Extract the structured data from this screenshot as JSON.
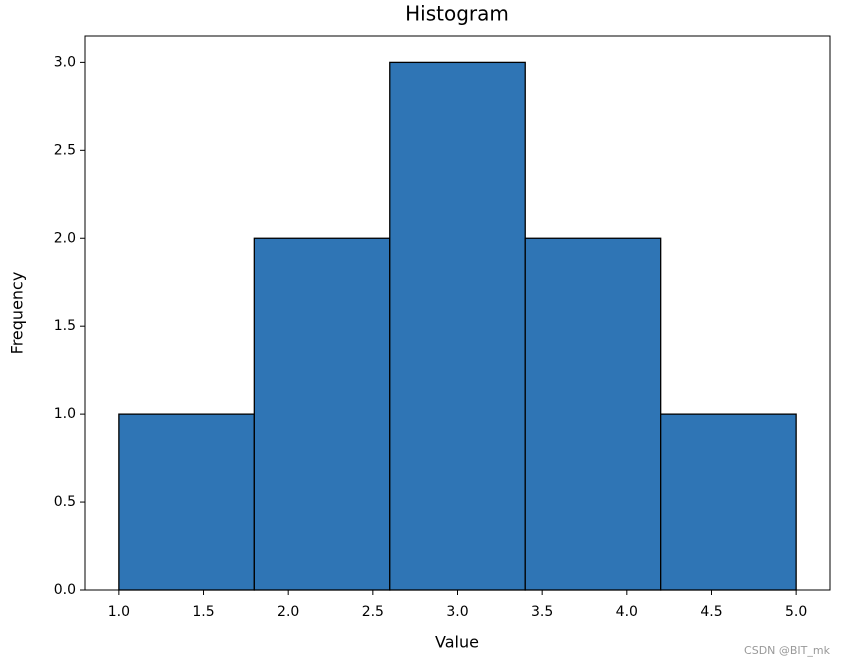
{
  "chart_data": {
    "type": "histogram",
    "title": "Histogram",
    "x_label": "Value",
    "y_label": "Frequency",
    "bins": [
      1.0,
      1.8,
      2.6,
      3.4,
      4.2,
      5.0
    ],
    "values": [
      1,
      2,
      3,
      2,
      1
    ],
    "color": "#2f75b5",
    "edgecolor": "#000000",
    "xlim": [
      0.8,
      5.2
    ],
    "ylim": [
      0,
      3.15
    ],
    "xticks": [
      {
        "value": 1,
        "label": "1.0"
      },
      1.5,
      {
        "value": 2,
        "label": "2.0"
      },
      2.5,
      {
        "value": 3,
        "label": "3.0"
      },
      3.5,
      {
        "value": 4,
        "label": "4.0"
      },
      4.5,
      {
        "value": 5,
        "label": "5.0"
      }
    ],
    "yticks": [
      {
        "value": 0,
        "label": "0.0"
      },
      0.5,
      {
        "value": 1,
        "label": "1.0"
      },
      1.5,
      {
        "value": 2,
        "label": "2.0"
      },
      2.5,
      {
        "value": 3,
        "label": "3.0"
      }
    ],
    "grid": false
  },
  "watermark": "CSDN @BIT_mk"
}
